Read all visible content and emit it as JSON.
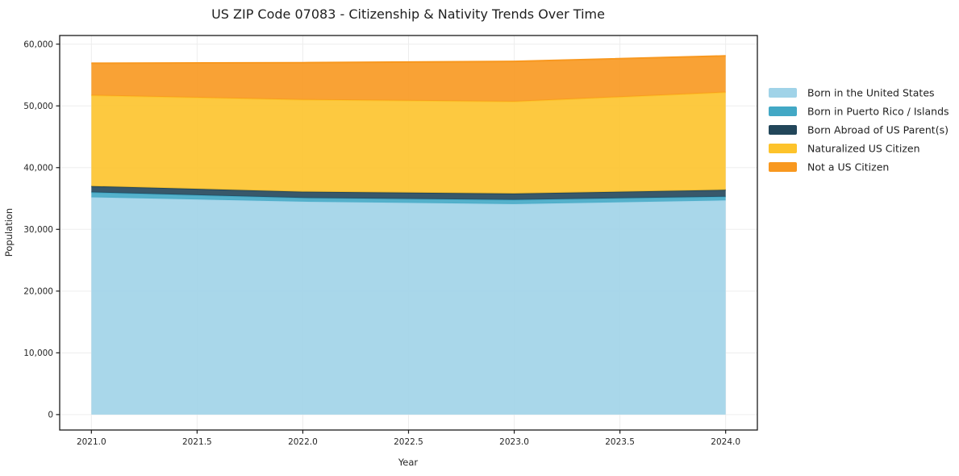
{
  "page": {
    "background": "#ffffff"
  },
  "chart_data": {
    "type": "area",
    "stacked": true,
    "title": "US ZIP Code 07083 - Citizenship & Nativity Trends Over Time",
    "xlabel": "Year",
    "ylabel": "Population",
    "x": [
      2021,
      2022,
      2023,
      2024
    ],
    "series": [
      {
        "name": "Born in the United States",
        "color": "#A0D3E8",
        "values": [
          35200,
          34500,
          34100,
          34700
        ]
      },
      {
        "name": "Born in Puerto Rico / Islands",
        "color": "#42A8C5",
        "values": [
          800,
          600,
          700,
          600
        ]
      },
      {
        "name": "Born Abroad of US Parent(s)",
        "color": "#22465A",
        "values": [
          1000,
          1000,
          1000,
          1100
        ]
      },
      {
        "name": "Naturalized US Citizen",
        "color": "#FDC32B",
        "values": [
          14700,
          14900,
          14900,
          15800
        ]
      },
      {
        "name": "Not a US Citizen",
        "color": "#F8981F",
        "values": [
          5200,
          6000,
          6500,
          5900
        ]
      }
    ],
    "totals": [
      56900,
      57000,
      57200,
      58100
    ],
    "xticks": {
      "values": [
        2021.0,
        2021.5,
        2022.0,
        2022.5,
        2023.0,
        2023.5,
        2024.0
      ],
      "labels": [
        "2021.0",
        "2021.5",
        "2022.0",
        "2022.5",
        "2023.0",
        "2023.5",
        "2024.0"
      ]
    },
    "yticks": {
      "values": [
        0,
        10000,
        20000,
        30000,
        40000,
        50000,
        60000
      ],
      "labels": [
        "0",
        "10,000",
        "20,000",
        "30,000",
        "40,000",
        "50,000",
        "60,000"
      ]
    },
    "xlim": [
      2020.85,
      2024.15
    ],
    "ylim": [
      -2500,
      61400
    ],
    "grid": true,
    "legend_position": "right-outside-top",
    "colors": {
      "grid": "#ededed",
      "spine": "#1a1a1a",
      "text": "#262626"
    }
  }
}
